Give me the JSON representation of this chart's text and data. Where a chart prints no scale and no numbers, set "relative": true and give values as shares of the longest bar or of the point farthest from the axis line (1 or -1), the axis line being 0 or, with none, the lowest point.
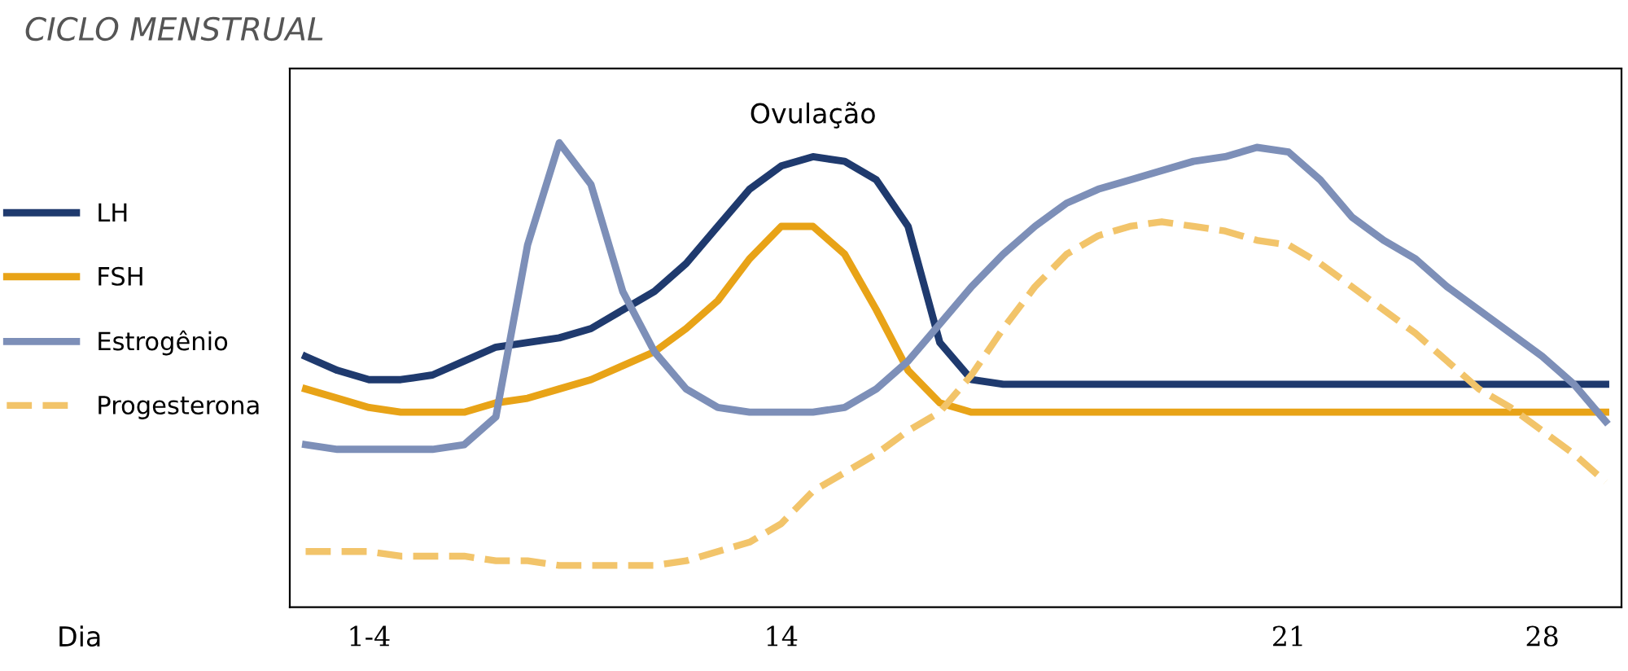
{
  "chart_data": {
    "type": "line",
    "title": "CICLO MENSTRUAL",
    "relative": true,
    "categories": [
      null,
      null,
      "1-4",
      null,
      null,
      null,
      null,
      null,
      null,
      null,
      null,
      null,
      null,
      null,
      null,
      "14",
      null,
      null,
      null,
      null,
      null,
      null,
      null,
      null,
      null,
      null,
      null,
      null,
      null,
      null,
      null,
      "21",
      null,
      null,
      null,
      null,
      null,
      null,
      null,
      "28",
      null,
      null
    ],
    "series": [
      {
        "name": "LH",
        "color": "#1f3a6e",
        "line_style": "solid",
        "values": [
          0.54,
          0.51,
          0.49,
          0.49,
          0.5,
          0.53,
          0.56,
          0.57,
          0.58,
          0.6,
          0.64,
          0.68,
          0.74,
          0.82,
          0.9,
          0.95,
          0.97,
          0.96,
          0.92,
          0.82,
          0.57,
          0.49,
          0.48,
          0.48,
          0.48,
          0.48,
          0.48,
          0.48,
          0.48,
          0.48,
          0.48,
          0.48,
          0.48,
          0.48,
          0.48,
          0.48,
          0.48,
          0.48,
          0.48,
          0.48,
          0.48,
          0.48
        ]
      },
      {
        "name": "FSH",
        "color": "#e8a317",
        "line_style": "solid",
        "values": [
          0.47,
          0.45,
          0.43,
          0.42,
          0.42,
          0.42,
          0.44,
          0.45,
          0.47,
          0.49,
          0.52,
          0.55,
          0.6,
          0.66,
          0.75,
          0.82,
          0.82,
          0.76,
          0.64,
          0.51,
          0.44,
          0.42,
          0.42,
          0.42,
          0.42,
          0.42,
          0.42,
          0.42,
          0.42,
          0.42,
          0.42,
          0.42,
          0.42,
          0.42,
          0.42,
          0.42,
          0.42,
          0.42,
          0.42,
          0.42,
          0.42,
          0.42
        ]
      },
      {
        "name": "Estrogênio",
        "color": "#7d8fb8",
        "line_style": "solid",
        "values": [
          0.35,
          0.34,
          0.34,
          0.34,
          0.34,
          0.35,
          0.41,
          0.78,
          1.0,
          0.91,
          0.68,
          0.55,
          0.47,
          0.43,
          0.42,
          0.42,
          0.42,
          0.43,
          0.47,
          0.53,
          0.61,
          0.69,
          0.76,
          0.82,
          0.87,
          0.9,
          0.92,
          0.94,
          0.96,
          0.97,
          0.99,
          0.98,
          0.92,
          0.84,
          0.79,
          0.75,
          0.69,
          0.64,
          0.59,
          0.54,
          0.48,
          0.4
        ]
      },
      {
        "name": "Progesterona",
        "color": "#f2c46a",
        "line_style": "dashed",
        "values": [
          0.12,
          0.12,
          0.12,
          0.11,
          0.11,
          0.11,
          0.1,
          0.1,
          0.09,
          0.09,
          0.09,
          0.09,
          0.1,
          0.12,
          0.14,
          0.18,
          0.25,
          0.29,
          0.33,
          0.38,
          0.42,
          0.5,
          0.6,
          0.69,
          0.76,
          0.8,
          0.82,
          0.83,
          0.82,
          0.81,
          0.79,
          0.78,
          0.74,
          0.69,
          0.64,
          0.59,
          0.53,
          0.47,
          0.43,
          0.38,
          0.33,
          0.27
        ]
      }
    ],
    "annotations": [
      "Ovulação",
      "Dia"
    ],
    "legend": "left",
    "grid": false
  }
}
